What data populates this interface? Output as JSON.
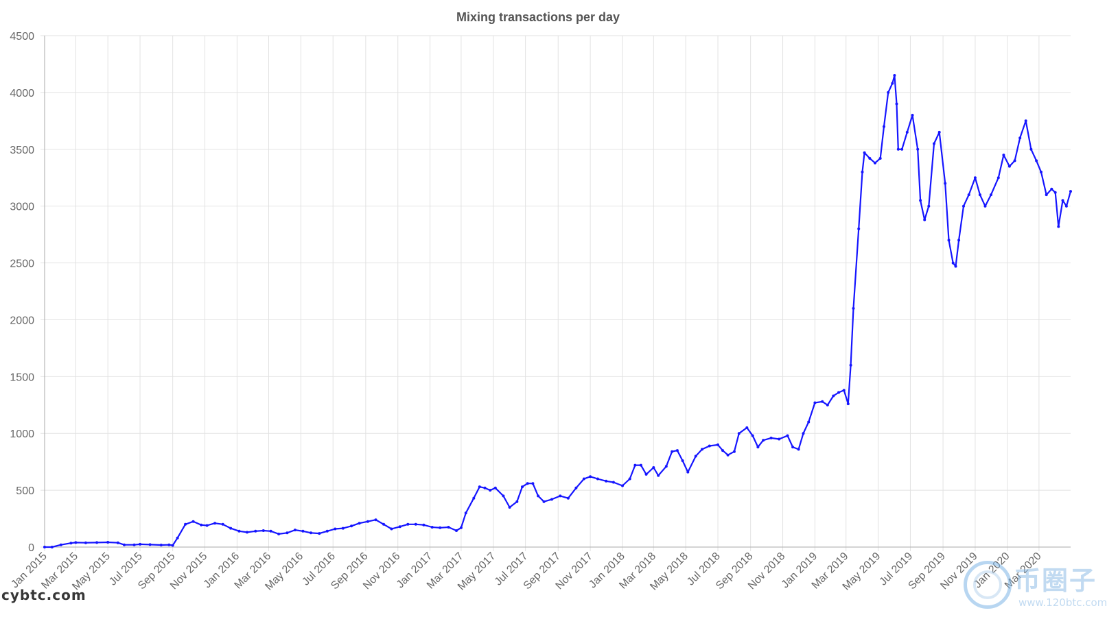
{
  "chart_data": {
    "type": "line",
    "title": "Mixing transactions per day",
    "xlabel": "",
    "ylabel": "",
    "ylim": [
      0,
      4500
    ],
    "yticks": [
      0,
      500,
      1000,
      1500,
      2000,
      2500,
      3000,
      3500,
      4000,
      4500
    ],
    "xlim": [
      "2015-01-01",
      "2020-04-30"
    ],
    "xtick_labels": [
      "Jan 2015",
      "Mar 2015",
      "May 2015",
      "Jul 2015",
      "Sep 2015",
      "Nov 2015",
      "Jan 2016",
      "Mar 2016",
      "May 2016",
      "Jul 2016",
      "Sep 2016",
      "Nov 2016",
      "Jan 2017",
      "Mar 2017",
      "May 2017",
      "Jul 2017",
      "Sep 2017",
      "Nov 2017",
      "Jan 2018",
      "Mar 2018",
      "May 2018",
      "Jul 2018",
      "Sep 2018",
      "Nov 2018",
      "Jan 2019",
      "Mar 2019",
      "May 2019",
      "Jul 2019",
      "Sep 2019",
      "Nov 2019",
      "Jan 2020",
      "Mar 2020"
    ],
    "grid": true,
    "legend": "none",
    "line_color": "#1515ff",
    "series": [
      {
        "points": [
          [
            "2015-01-01",
            0
          ],
          [
            "2015-01-15",
            0
          ],
          [
            "2015-02-01",
            20
          ],
          [
            "2015-02-20",
            35
          ],
          [
            "2015-03-01",
            40
          ],
          [
            "2015-03-20",
            38
          ],
          [
            "2015-04-10",
            40
          ],
          [
            "2015-05-01",
            42
          ],
          [
            "2015-05-20",
            38
          ],
          [
            "2015-06-01",
            20
          ],
          [
            "2015-06-20",
            20
          ],
          [
            "2015-07-01",
            25
          ],
          [
            "2015-07-20",
            22
          ],
          [
            "2015-08-10",
            18
          ],
          [
            "2015-08-25",
            20
          ],
          [
            "2015-09-01",
            15
          ],
          [
            "2015-09-10",
            80
          ],
          [
            "2015-09-25",
            200
          ],
          [
            "2015-10-10",
            225
          ],
          [
            "2015-10-25",
            195
          ],
          [
            "2015-11-05",
            190
          ],
          [
            "2015-11-20",
            210
          ],
          [
            "2015-12-05",
            200
          ],
          [
            "2015-12-20",
            165
          ],
          [
            "2016-01-05",
            140
          ],
          [
            "2016-01-20",
            130
          ],
          [
            "2016-02-05",
            140
          ],
          [
            "2016-02-20",
            145
          ],
          [
            "2016-03-05",
            140
          ],
          [
            "2016-03-20",
            115
          ],
          [
            "2016-04-05",
            125
          ],
          [
            "2016-04-20",
            150
          ],
          [
            "2016-05-05",
            140
          ],
          [
            "2016-05-20",
            125
          ],
          [
            "2016-06-05",
            120
          ],
          [
            "2016-06-20",
            140
          ],
          [
            "2016-07-05",
            160
          ],
          [
            "2016-07-20",
            165
          ],
          [
            "2016-08-05",
            185
          ],
          [
            "2016-08-20",
            210
          ],
          [
            "2016-09-05",
            225
          ],
          [
            "2016-09-20",
            240
          ],
          [
            "2016-10-05",
            200
          ],
          [
            "2016-10-20",
            160
          ],
          [
            "2016-11-05",
            180
          ],
          [
            "2016-11-20",
            200
          ],
          [
            "2016-12-05",
            200
          ],
          [
            "2016-12-20",
            195
          ],
          [
            "2017-01-05",
            175
          ],
          [
            "2017-01-20",
            170
          ],
          [
            "2017-02-05",
            175
          ],
          [
            "2017-02-20",
            145
          ],
          [
            "2017-03-01",
            170
          ],
          [
            "2017-03-10",
            300
          ],
          [
            "2017-03-25",
            430
          ],
          [
            "2017-04-05",
            530
          ],
          [
            "2017-04-15",
            520
          ],
          [
            "2017-04-25",
            500
          ],
          [
            "2017-05-05",
            520
          ],
          [
            "2017-05-20",
            450
          ],
          [
            "2017-06-01",
            350
          ],
          [
            "2017-06-15",
            400
          ],
          [
            "2017-06-25",
            530
          ],
          [
            "2017-07-05",
            560
          ],
          [
            "2017-07-15",
            560
          ],
          [
            "2017-07-25",
            450
          ],
          [
            "2017-08-05",
            400
          ],
          [
            "2017-08-20",
            420
          ],
          [
            "2017-09-05",
            450
          ],
          [
            "2017-09-20",
            430
          ],
          [
            "2017-10-05",
            520
          ],
          [
            "2017-10-20",
            600
          ],
          [
            "2017-11-01",
            620
          ],
          [
            "2017-11-15",
            600
          ],
          [
            "2017-12-01",
            580
          ],
          [
            "2017-12-15",
            570
          ],
          [
            "2018-01-01",
            540
          ],
          [
            "2018-01-15",
            600
          ],
          [
            "2018-01-25",
            720
          ],
          [
            "2018-02-05",
            720
          ],
          [
            "2018-02-15",
            640
          ],
          [
            "2018-03-01",
            700
          ],
          [
            "2018-03-10",
            630
          ],
          [
            "2018-03-25",
            710
          ],
          [
            "2018-04-05",
            840
          ],
          [
            "2018-04-15",
            850
          ],
          [
            "2018-04-25",
            760
          ],
          [
            "2018-05-05",
            660
          ],
          [
            "2018-05-20",
            800
          ],
          [
            "2018-06-01",
            860
          ],
          [
            "2018-06-15",
            890
          ],
          [
            "2018-07-01",
            900
          ],
          [
            "2018-07-10",
            850
          ],
          [
            "2018-07-20",
            810
          ],
          [
            "2018-08-01",
            840
          ],
          [
            "2018-08-10",
            1000
          ],
          [
            "2018-08-25",
            1050
          ],
          [
            "2018-09-05",
            980
          ],
          [
            "2018-09-15",
            880
          ],
          [
            "2018-09-25",
            940
          ],
          [
            "2018-10-10",
            960
          ],
          [
            "2018-10-25",
            950
          ],
          [
            "2018-11-10",
            980
          ],
          [
            "2018-11-20",
            880
          ],
          [
            "2018-12-01",
            860
          ],
          [
            "2018-12-10",
            1000
          ],
          [
            "2018-12-20",
            1100
          ],
          [
            "2019-01-01",
            1270
          ],
          [
            "2019-01-15",
            1280
          ],
          [
            "2019-01-25",
            1250
          ],
          [
            "2019-02-05",
            1330
          ],
          [
            "2019-02-15",
            1360
          ],
          [
            "2019-02-25",
            1380
          ],
          [
            "2019-03-05",
            1260
          ],
          [
            "2019-03-10",
            1600
          ],
          [
            "2019-03-15",
            2100
          ],
          [
            "2019-03-25",
            2800
          ],
          [
            "2019-04-01",
            3300
          ],
          [
            "2019-04-05",
            3470
          ],
          [
            "2019-04-15",
            3420
          ],
          [
            "2019-04-25",
            3380
          ],
          [
            "2019-05-05",
            3420
          ],
          [
            "2019-05-12",
            3700
          ],
          [
            "2019-05-20",
            4000
          ],
          [
            "2019-05-28",
            4080
          ],
          [
            "2019-06-01",
            4150
          ],
          [
            "2019-06-05",
            3900
          ],
          [
            "2019-06-08",
            3500
          ],
          [
            "2019-06-15",
            3500
          ],
          [
            "2019-06-25",
            3650
          ],
          [
            "2019-07-05",
            3800
          ],
          [
            "2019-07-15",
            3500
          ],
          [
            "2019-07-20",
            3050
          ],
          [
            "2019-07-28",
            2880
          ],
          [
            "2019-08-05",
            3000
          ],
          [
            "2019-08-15",
            3550
          ],
          [
            "2019-08-25",
            3650
          ],
          [
            "2019-09-05",
            3200
          ],
          [
            "2019-09-12",
            2700
          ],
          [
            "2019-09-20",
            2500
          ],
          [
            "2019-09-25",
            2470
          ],
          [
            "2019-10-01",
            2700
          ],
          [
            "2019-10-10",
            3000
          ],
          [
            "2019-10-20",
            3100
          ],
          [
            "2019-11-01",
            3250
          ],
          [
            "2019-11-10",
            3100
          ],
          [
            "2019-11-20",
            3000
          ],
          [
            "2019-12-01",
            3100
          ],
          [
            "2019-12-15",
            3250
          ],
          [
            "2019-12-25",
            3450
          ],
          [
            "2020-01-05",
            3350
          ],
          [
            "2020-01-15",
            3400
          ],
          [
            "2020-01-25",
            3600
          ],
          [
            "2020-02-05",
            3750
          ],
          [
            "2020-02-15",
            3500
          ],
          [
            "2020-02-25",
            3400
          ],
          [
            "2020-03-05",
            3300
          ],
          [
            "2020-03-15",
            3100
          ],
          [
            "2020-03-25",
            3150
          ],
          [
            "2020-04-01",
            3120
          ],
          [
            "2020-04-07",
            2820
          ],
          [
            "2020-04-15",
            3050
          ],
          [
            "2020-04-22",
            3000
          ],
          [
            "2020-04-30",
            3130
          ]
        ]
      }
    ]
  },
  "watermarks": {
    "left_text": "cybtc.com",
    "right_text": "币圈子",
    "right_url": "www.120btc.com"
  }
}
